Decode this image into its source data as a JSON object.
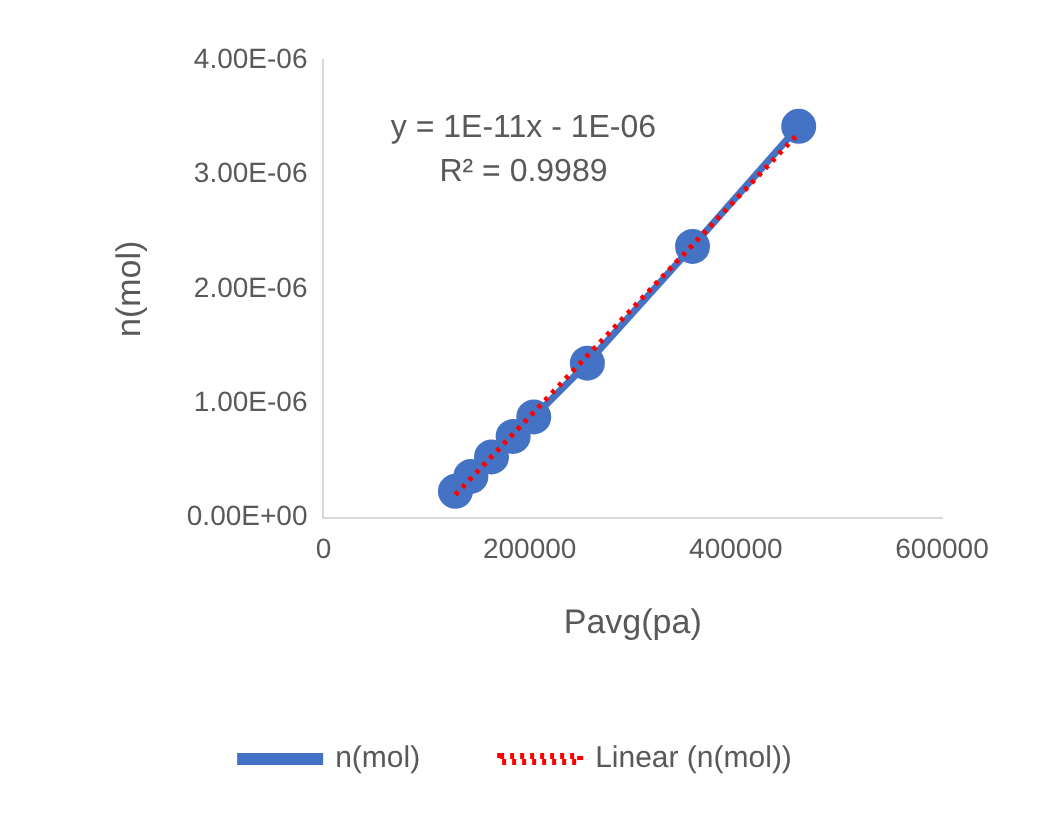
{
  "chart_data": {
    "type": "line",
    "xlabel": "Pavg(pa)",
    "ylabel": "n(mol)",
    "annotations": [
      "y = 1E-11x - 1E-06",
      "R² = 0.9989"
    ],
    "xlim": [
      0,
      600000
    ],
    "xticks": [
      0,
      200000,
      400000,
      600000
    ],
    "ylim": [
      0,
      4e-06
    ],
    "yticks": [
      {
        "value": 0,
        "label": "0.00E+00"
      },
      {
        "value": 1e-06,
        "label": "1.00E-06"
      },
      {
        "value": 2e-06,
        "label": "2.00E-06"
      },
      {
        "value": 3e-06,
        "label": "3.00E-06"
      },
      {
        "value": 4e-06,
        "label": "4.00E-06"
      }
    ],
    "grid": false,
    "legend": "bottom",
    "series": [
      {
        "name": "n(mol)",
        "color": "#4472c4",
        "marker": "circle",
        "line_style": "solid",
        "x": [
          128000,
          143000,
          163000,
          184000,
          204000,
          256000,
          358000,
          461000
        ],
        "values": [
          2.3e-07,
          3.6e-07,
          5.3e-07,
          7.1e-07,
          8.8e-07,
          1.35e-06,
          2.37e-06,
          3.42e-06
        ]
      },
      {
        "name": "Linear (n(mol))",
        "color": "#ff0000",
        "marker": "none",
        "line_style": "dotted",
        "x": [
          128000,
          461000
        ],
        "values": [
          2e-07,
          3.36e-06
        ]
      }
    ]
  }
}
